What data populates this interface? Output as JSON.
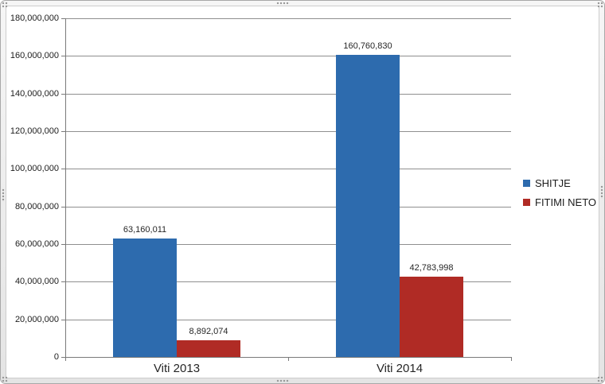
{
  "chart_data": {
    "type": "bar",
    "title": "",
    "xlabel": "",
    "ylabel": "",
    "categories": [
      "Viti 2013",
      "Viti 2014"
    ],
    "series": [
      {
        "name": "SHITJE",
        "color": "#2d6bae",
        "values": [
          63160011,
          160760830
        ],
        "value_labels": [
          "63,160,011",
          "160,760,830"
        ]
      },
      {
        "name": "FITIMI NETO",
        "color": "#b02b25",
        "values": [
          8892074,
          42783998
        ],
        "value_labels": [
          "8,892,074",
          "42,783,998"
        ]
      }
    ],
    "ylim": [
      0,
      180000000
    ],
    "ytick_step": 20000000,
    "ytick_labels": [
      "0",
      "20,000,000",
      "40,000,000",
      "60,000,000",
      "80,000,000",
      "100,000,000",
      "120,000,000",
      "140,000,000",
      "160,000,000",
      "180,000,000"
    ],
    "grid": true,
    "legend_position": "right"
  },
  "colors": {
    "gridline": "#8f8f8f",
    "axis": "#7a7a7a",
    "label_text": "#1c1c1c",
    "frame_border": "#a8a8a8",
    "chart_background": "#ffffff"
  }
}
